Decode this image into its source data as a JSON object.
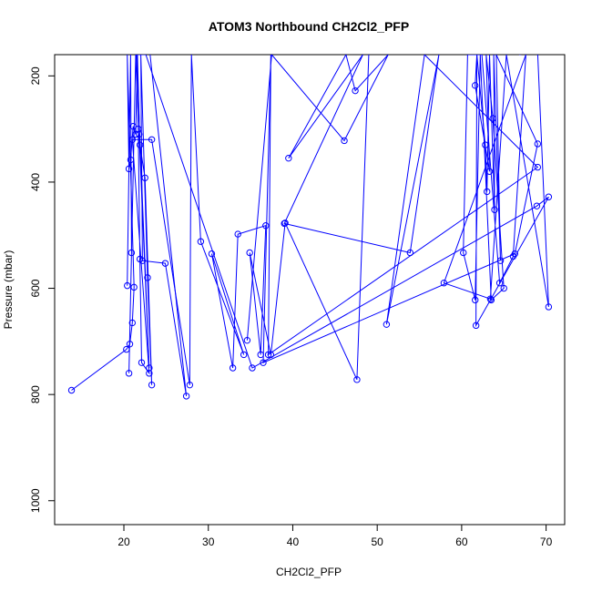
{
  "chart_data": {
    "type": "line",
    "title": "ATOM3 Northbound CH2Cl2_PFP",
    "xlabel": "CH2Cl2_PFP",
    "ylabel": "Pressure (mbar)",
    "xlim": [
      11.8,
      72.2
    ],
    "ylim": [
      1045,
      160
    ],
    "y_reversed": true,
    "x_ticks": [
      20,
      30,
      40,
      50,
      60,
      70
    ],
    "y_ticks": [
      200,
      400,
      600,
      800,
      1000
    ],
    "grid": false,
    "legend": "none",
    "color": "#0000ff",
    "marker": "open-circle",
    "series": [
      {
        "points": [
          [
            13.8,
            792
          ],
          [
            20.3,
            715
          ],
          [
            20.7,
            705
          ],
          [
            21.0,
            665
          ],
          [
            21.2,
            598
          ],
          [
            20.4,
            160
          ],
          [
            20.6,
            375
          ],
          [
            20.8,
            358
          ],
          [
            21.1,
            295
          ],
          [
            21.4,
            310
          ],
          [
            21.6,
            160
          ],
          [
            21.9,
            330
          ],
          [
            22.5,
            392
          ],
          [
            23.3,
            782
          ],
          [
            22.8,
            580
          ],
          [
            22.0,
            160
          ],
          [
            22.2,
            548
          ],
          [
            24.9,
            553
          ],
          [
            27.4,
            803
          ],
          [
            23.1,
            160
          ]
        ]
      },
      {
        "points": [
          [
            20.4,
            595
          ],
          [
            20.8,
            160
          ],
          [
            20.9,
            533
          ],
          [
            20.6,
            760
          ],
          [
            21.4,
            160
          ],
          [
            21.7,
            300
          ],
          [
            21.9,
            545
          ],
          [
            22.1,
            740
          ],
          [
            23.0,
            760
          ],
          [
            21.0,
            320
          ],
          [
            23.3,
            320
          ],
          [
            27.8,
            782
          ],
          [
            28.0,
            160
          ],
          [
            29.1,
            512
          ],
          [
            34.2,
            725
          ],
          [
            30.4,
            535
          ],
          [
            32.9,
            750
          ],
          [
            33.5,
            498
          ],
          [
            36.8,
            482
          ],
          [
            36.2,
            725
          ],
          [
            34.9,
            533
          ],
          [
            37.4,
            725
          ],
          [
            39.1,
            477
          ],
          [
            47.6,
            772
          ],
          [
            49.0,
            160
          ]
        ]
      },
      {
        "points": [
          [
            21.8,
            310
          ],
          [
            23.0,
            750
          ],
          [
            21.5,
            160
          ],
          [
            22.6,
            160
          ],
          [
            35.2,
            750
          ],
          [
            68.9,
            445
          ],
          [
            70.3,
            428
          ],
          [
            61.7,
            670
          ],
          [
            61.8,
            160
          ],
          [
            61.6,
            218
          ],
          [
            63.3,
            380
          ],
          [
            62.9,
            160
          ],
          [
            63.7,
            280
          ],
          [
            65.0,
            600
          ],
          [
            63.5,
            622
          ],
          [
            62.2,
            160
          ],
          [
            61.6,
            622
          ],
          [
            60.2,
            533
          ],
          [
            60.7,
            160
          ],
          [
            62.5,
            160
          ]
        ]
      },
      {
        "points": [
          [
            34.6,
            698
          ],
          [
            37.5,
            160
          ],
          [
            46.1,
            322
          ],
          [
            51.3,
            160
          ],
          [
            47.4,
            228
          ],
          [
            46.3,
            160
          ],
          [
            39.5,
            355
          ],
          [
            48.3,
            160
          ],
          [
            39.0,
            478
          ],
          [
            53.9,
            533
          ],
          [
            57.3,
            160
          ],
          [
            51.1,
            668
          ],
          [
            55.6,
            160
          ],
          [
            69.0,
            372
          ],
          [
            37.1,
            725
          ],
          [
            37.4,
            160
          ],
          [
            36.5,
            740
          ],
          [
            66.3,
            535
          ],
          [
            69.0,
            328
          ],
          [
            64.1,
            160
          ],
          [
            64.6,
            548
          ],
          [
            63.8,
            160
          ],
          [
            63.9,
            452
          ],
          [
            63.3,
            160
          ],
          [
            63.0,
            418
          ],
          [
            62.8,
            330
          ],
          [
            61.8,
            160
          ],
          [
            62.4,
            160
          ],
          [
            64.5,
            590
          ],
          [
            66.1,
            540
          ],
          [
            67.6,
            160
          ],
          [
            57.9,
            590
          ],
          [
            63.4,
            620
          ],
          [
            65.3,
            160
          ],
          [
            70.3,
            635
          ],
          [
            69.0,
            155
          ],
          [
            66.8,
            160
          ]
        ]
      }
    ]
  }
}
